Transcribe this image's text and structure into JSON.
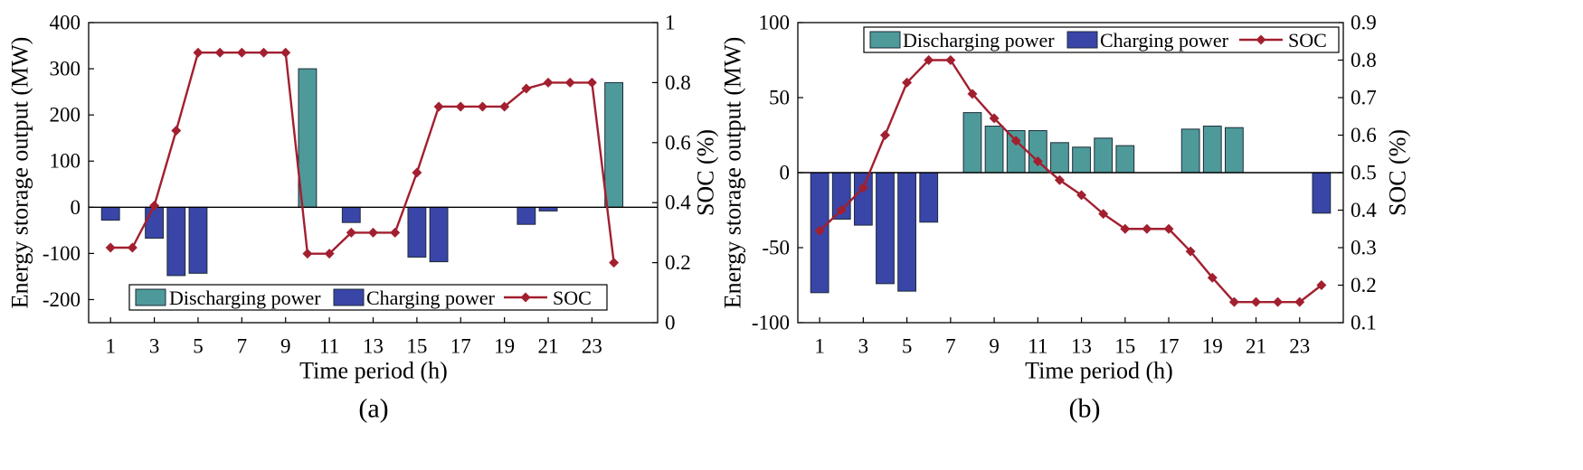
{
  "chart_data": [
    {
      "type": "bar",
      "caption": "(a)",
      "xlabel": "Time period (h)",
      "ylabel": "Energy storage output (MW)",
      "y2label": "SOC (%)",
      "x": [
        1,
        2,
        3,
        4,
        5,
        6,
        7,
        8,
        9,
        10,
        11,
        12,
        13,
        14,
        15,
        16,
        17,
        18,
        19,
        20,
        21,
        22,
        23,
        24
      ],
      "xlim": [
        0,
        26
      ],
      "xticks": [
        1,
        3,
        5,
        7,
        9,
        11,
        13,
        15,
        17,
        19,
        21,
        23
      ],
      "ylim": [
        -250,
        400
      ],
      "yticks": [
        -200,
        -100,
        0,
        100,
        200,
        300,
        400
      ],
      "y2lim": [
        0,
        1
      ],
      "y2ticks": [
        0,
        0.2,
        0.4,
        0.6,
        0.8,
        1
      ],
      "grid": false,
      "legend": "bottom",
      "series": [
        {
          "name": "Discharging power",
          "type": "bar",
          "color": "#4e9a9a",
          "values": [
            null,
            null,
            null,
            null,
            null,
            null,
            null,
            null,
            null,
            300,
            null,
            null,
            null,
            null,
            null,
            null,
            null,
            null,
            null,
            null,
            null,
            null,
            null,
            270
          ]
        },
        {
          "name": "Charging power",
          "type": "bar",
          "color": "#3a45a8",
          "values": [
            -28,
            null,
            -67,
            -148,
            -143,
            null,
            null,
            null,
            null,
            null,
            null,
            -33,
            null,
            null,
            -108,
            -118,
            null,
            null,
            null,
            -37,
            -8,
            null,
            null,
            null
          ]
        },
        {
          "name": "SOC",
          "type": "line",
          "color": "#a21f2f",
          "values": [
            0.25,
            0.25,
            0.39,
            0.64,
            0.9,
            0.9,
            0.9,
            0.9,
            0.9,
            0.23,
            0.23,
            0.3,
            0.3,
            0.3,
            0.5,
            0.72,
            0.72,
            0.72,
            0.72,
            0.78,
            0.8,
            0.8,
            0.8,
            0.2
          ]
        }
      ]
    },
    {
      "type": "bar",
      "caption": "(b)",
      "xlabel": "Time period (h)",
      "ylabel": "Energy storage output (MW)",
      "y2label": "SOC (%)",
      "x": [
        1,
        2,
        3,
        4,
        5,
        6,
        7,
        8,
        9,
        10,
        11,
        12,
        13,
        14,
        15,
        16,
        17,
        18,
        19,
        20,
        21,
        22,
        23,
        24
      ],
      "xlim": [
        0,
        25
      ],
      "xticks": [
        1,
        3,
        5,
        7,
        9,
        11,
        13,
        15,
        17,
        19,
        21,
        23
      ],
      "ylim": [
        -100,
        100
      ],
      "yticks": [
        -100,
        -50,
        0,
        50,
        100
      ],
      "y2lim": [
        0.1,
        0.9
      ],
      "y2ticks": [
        0.1,
        0.2,
        0.3,
        0.4,
        0.5,
        0.6,
        0.7,
        0.8,
        0.9
      ],
      "grid": false,
      "legend": "top-right",
      "series": [
        {
          "name": "Discharging power",
          "type": "bar",
          "color": "#4e9a9a",
          "values": [
            null,
            null,
            null,
            null,
            null,
            null,
            null,
            40,
            31,
            28,
            28,
            20,
            17,
            23,
            18,
            null,
            null,
            29,
            31,
            30,
            null,
            null,
            null,
            null
          ]
        },
        {
          "name": "Charging power",
          "type": "bar",
          "color": "#3a45a8",
          "values": [
            -80,
            -31,
            -35,
            -74,
            -79,
            -33,
            null,
            null,
            null,
            null,
            null,
            null,
            null,
            null,
            null,
            null,
            null,
            null,
            null,
            null,
            null,
            null,
            null,
            -27
          ]
        },
        {
          "name": "SOC",
          "type": "line",
          "color": "#a21f2f",
          "values": [
            0.345,
            0.4,
            0.46,
            0.6,
            0.74,
            0.8,
            0.8,
            0.71,
            0.645,
            0.585,
            0.53,
            0.48,
            0.44,
            0.39,
            0.35,
            0.35,
            0.35,
            0.29,
            0.22,
            0.155,
            0.155,
            0.155,
            0.155,
            0.2
          ]
        }
      ]
    }
  ]
}
